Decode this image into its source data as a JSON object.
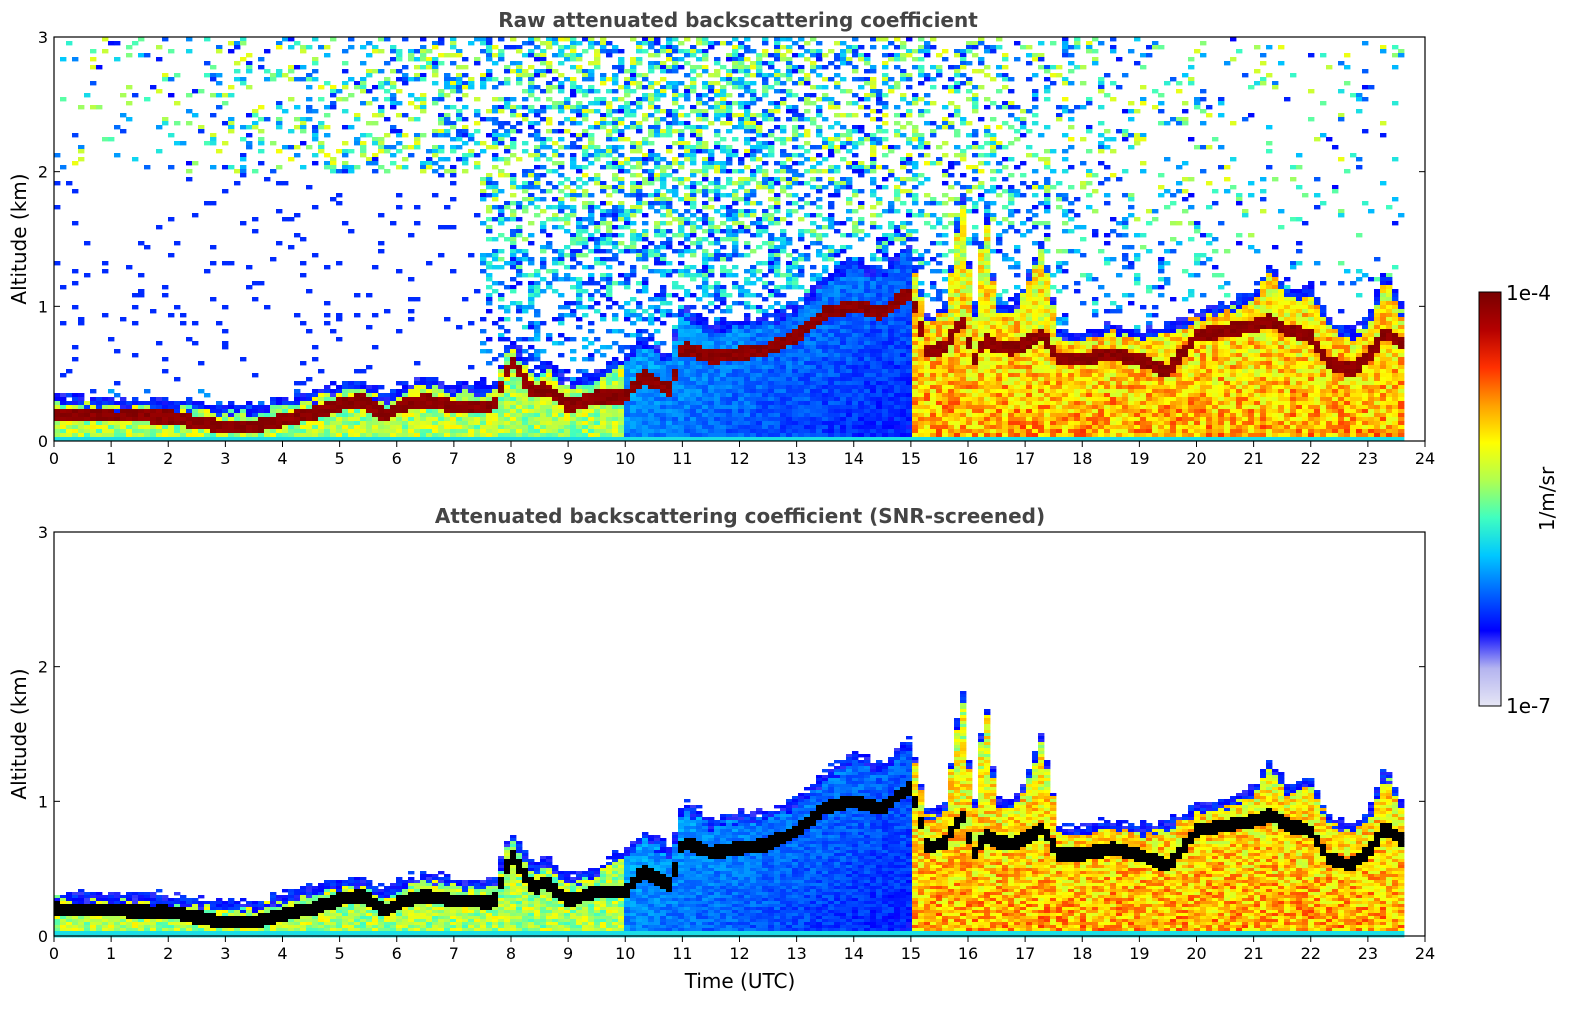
{
  "chart_data": [
    {
      "type": "heatmap",
      "title": "Raw attenuated backscattering coefficient",
      "xlabel": "",
      "ylabel": "Altitude (km)",
      "xlim": [
        0,
        24
      ],
      "ylim": [
        0,
        3
      ],
      "xticks": [
        "0",
        "1",
        "2",
        "3",
        "4",
        "5",
        "6",
        "7",
        "8",
        "9",
        "10",
        "11",
        "12",
        "13",
        "14",
        "15",
        "16",
        "17",
        "18",
        "19",
        "20",
        "21",
        "22",
        "23",
        "24"
      ],
      "yticks": [
        "0",
        "1",
        "2",
        "3"
      ],
      "data_end_hour": 23.65,
      "noise": "high",
      "layer_top_km": [
        [
          0,
          0.27
        ],
        [
          1,
          0.25
        ],
        [
          2,
          0.24
        ],
        [
          3,
          0.2
        ],
        [
          3.5,
          0.2
        ],
        [
          4,
          0.25
        ],
        [
          4.5,
          0.3
        ],
        [
          5,
          0.36
        ],
        [
          5.4,
          0.38
        ],
        [
          5.8,
          0.28
        ],
        [
          6.1,
          0.36
        ],
        [
          6.5,
          0.4
        ],
        [
          7,
          0.36
        ],
        [
          7.7,
          0.35
        ],
        [
          8,
          0.72
        ],
        [
          8.4,
          0.45
        ],
        [
          8.6,
          0.55
        ],
        [
          9,
          0.38
        ],
        [
          9.5,
          0.45
        ],
        [
          10,
          0.58
        ],
        [
          10.3,
          0.72
        ],
        [
          10.8,
          0.58
        ],
        [
          11,
          0.95
        ],
        [
          11.5,
          0.8
        ],
        [
          12,
          0.85
        ],
        [
          12.5,
          0.85
        ],
        [
          13,
          0.95
        ],
        [
          13.5,
          1.15
        ],
        [
          14,
          1.3
        ],
        [
          14.5,
          1.2
        ],
        [
          14.8,
          1.35
        ],
        [
          15,
          1.4
        ],
        [
          15.3,
          0.85
        ],
        [
          15.6,
          0.95
        ],
        [
          15.9,
          1.8
        ],
        [
          16.1,
          0.85
        ],
        [
          16.3,
          1.75
        ],
        [
          16.5,
          0.95
        ],
        [
          16.8,
          0.95
        ],
        [
          17,
          1.1
        ],
        [
          17.3,
          1.45
        ],
        [
          17.6,
          0.75
        ],
        [
          18,
          0.75
        ],
        [
          18.5,
          0.8
        ],
        [
          19,
          0.75
        ],
        [
          19.5,
          0.8
        ],
        [
          20,
          0.9
        ],
        [
          20.5,
          0.95
        ],
        [
          21,
          1.05
        ],
        [
          21.3,
          1.25
        ],
        [
          21.6,
          1.05
        ],
        [
          22,
          1.1
        ],
        [
          22.3,
          0.85
        ],
        [
          22.7,
          0.75
        ],
        [
          23,
          0.85
        ],
        [
          23.3,
          1.2
        ],
        [
          23.65,
          0.9
        ]
      ],
      "peak_km": [
        [
          0,
          0.2
        ],
        [
          1,
          0.19
        ],
        [
          2,
          0.18
        ],
        [
          3,
          0.1
        ],
        [
          3.5,
          0.1
        ],
        [
          4,
          0.16
        ],
        [
          4.5,
          0.2
        ],
        [
          5,
          0.27
        ],
        [
          5.4,
          0.3
        ],
        [
          5.8,
          0.18
        ],
        [
          6.1,
          0.26
        ],
        [
          6.5,
          0.3
        ],
        [
          7,
          0.26
        ],
        [
          7.7,
          0.25
        ],
        [
          8,
          0.6
        ],
        [
          8.4,
          0.35
        ],
        [
          8.6,
          0.4
        ],
        [
          9,
          0.26
        ],
        [
          9.5,
          0.33
        ],
        [
          10,
          0.32
        ],
        [
          10.3,
          0.48
        ],
        [
          10.8,
          0.38
        ],
        [
          11,
          0.7
        ],
        [
          11.5,
          0.62
        ],
        [
          12,
          0.65
        ],
        [
          12.5,
          0.68
        ],
        [
          13,
          0.78
        ],
        [
          13.5,
          0.95
        ],
        [
          14,
          1.0
        ],
        [
          14.5,
          0.95
        ],
        [
          14.8,
          1.05
        ],
        [
          15,
          1.1
        ],
        [
          15.3,
          0.65
        ],
        [
          15.6,
          0.7
        ],
        [
          15.9,
          0.9
        ],
        [
          16.1,
          0.6
        ],
        [
          16.3,
          0.75
        ],
        [
          16.5,
          0.7
        ],
        [
          16.8,
          0.68
        ],
        [
          17,
          0.72
        ],
        [
          17.3,
          0.8
        ],
        [
          17.6,
          0.6
        ],
        [
          18,
          0.6
        ],
        [
          18.5,
          0.65
        ],
        [
          19,
          0.6
        ],
        [
          19.5,
          0.52
        ],
        [
          20,
          0.78
        ],
        [
          20.5,
          0.82
        ],
        [
          21,
          0.85
        ],
        [
          21.3,
          0.9
        ],
        [
          21.6,
          0.82
        ],
        [
          22,
          0.78
        ],
        [
          22.3,
          0.58
        ],
        [
          22.7,
          0.52
        ],
        [
          23,
          0.62
        ],
        [
          23.3,
          0.8
        ],
        [
          23.65,
          0.7
        ]
      ],
      "mixed_layer_hours": [
        15.0,
        23.65
      ],
      "clear_aerosol_hours": [
        10.0,
        15.0
      ]
    },
    {
      "type": "heatmap",
      "title": "Attenuated backscattering coefficient (SNR-screened)",
      "xlabel": "Time (UTC)",
      "ylabel": "Altitude (km)",
      "xlim": [
        0,
        24
      ],
      "ylim": [
        0,
        3
      ],
      "xticks": [
        "0",
        "1",
        "2",
        "3",
        "4",
        "5",
        "6",
        "7",
        "8",
        "9",
        "10",
        "11",
        "12",
        "13",
        "14",
        "15",
        "16",
        "17",
        "18",
        "19",
        "20",
        "21",
        "22",
        "23",
        "24"
      ],
      "yticks": [
        "0",
        "1",
        "2",
        "3"
      ],
      "data_end_hour": 23.65,
      "noise": "screened",
      "saturated_color": "#000000"
    }
  ],
  "colorbar": {
    "label": "1/m/sr",
    "max_label": "1e-4",
    "min_label": "1e-7",
    "scale": "log",
    "colors": [
      "#e6e6f5",
      "#b4b4f0",
      "#0000ff",
      "#0064ff",
      "#00c8ff",
      "#40ffc0",
      "#b0ff50",
      "#ffff00",
      "#ffa000",
      "#ff3000",
      "#b40000",
      "#780000"
    ]
  }
}
